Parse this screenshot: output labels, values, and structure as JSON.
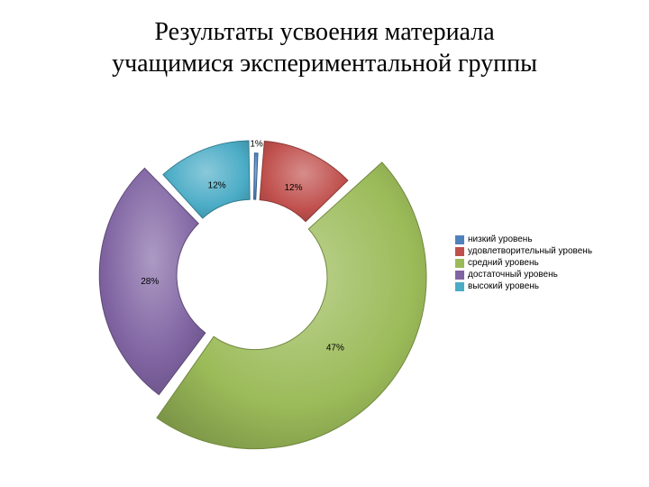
{
  "title_line1": "Результаты усвоения материала",
  "title_line2": "учащимися экспериментальной группы",
  "chart": {
    "type": "donut-exploded",
    "background_color": "#ffffff",
    "inner_radius": 80,
    "outer_radius_base": 130,
    "radius_scale_with_value": true,
    "max_outer_radius": 190,
    "gap_deg": 2,
    "start_angle_deg": -90,
    "slices": [
      {
        "label": "1%",
        "value": 1,
        "fill": "#4f81bd",
        "edge": "#3a5f8a"
      },
      {
        "label": "12%",
        "value": 12,
        "fill": "#c0504d",
        "edge": "#8c3a38"
      },
      {
        "label": "47%",
        "value": 47,
        "fill": "#9bbb59",
        "edge": "#71893f"
      },
      {
        "label": "28%",
        "value": 28,
        "fill": "#8064a2",
        "edge": "#5d4a77"
      },
      {
        "label": "12%",
        "value": 12,
        "fill": "#4bacc6",
        "edge": "#357d90"
      }
    ],
    "label_fontsize": 10
  },
  "legend": {
    "fontsize": 10,
    "items": [
      {
        "label": "низкий уровень",
        "color": "#4f81bd"
      },
      {
        "label": "удовлетворительный уровень",
        "color": "#c0504d"
      },
      {
        "label": "средний уровень",
        "color": "#9bbb59"
      },
      {
        "label": "достаточный уровень",
        "color": "#8064a2"
      },
      {
        "label": "высокий уровень",
        "color": "#4bacc6"
      }
    ]
  }
}
